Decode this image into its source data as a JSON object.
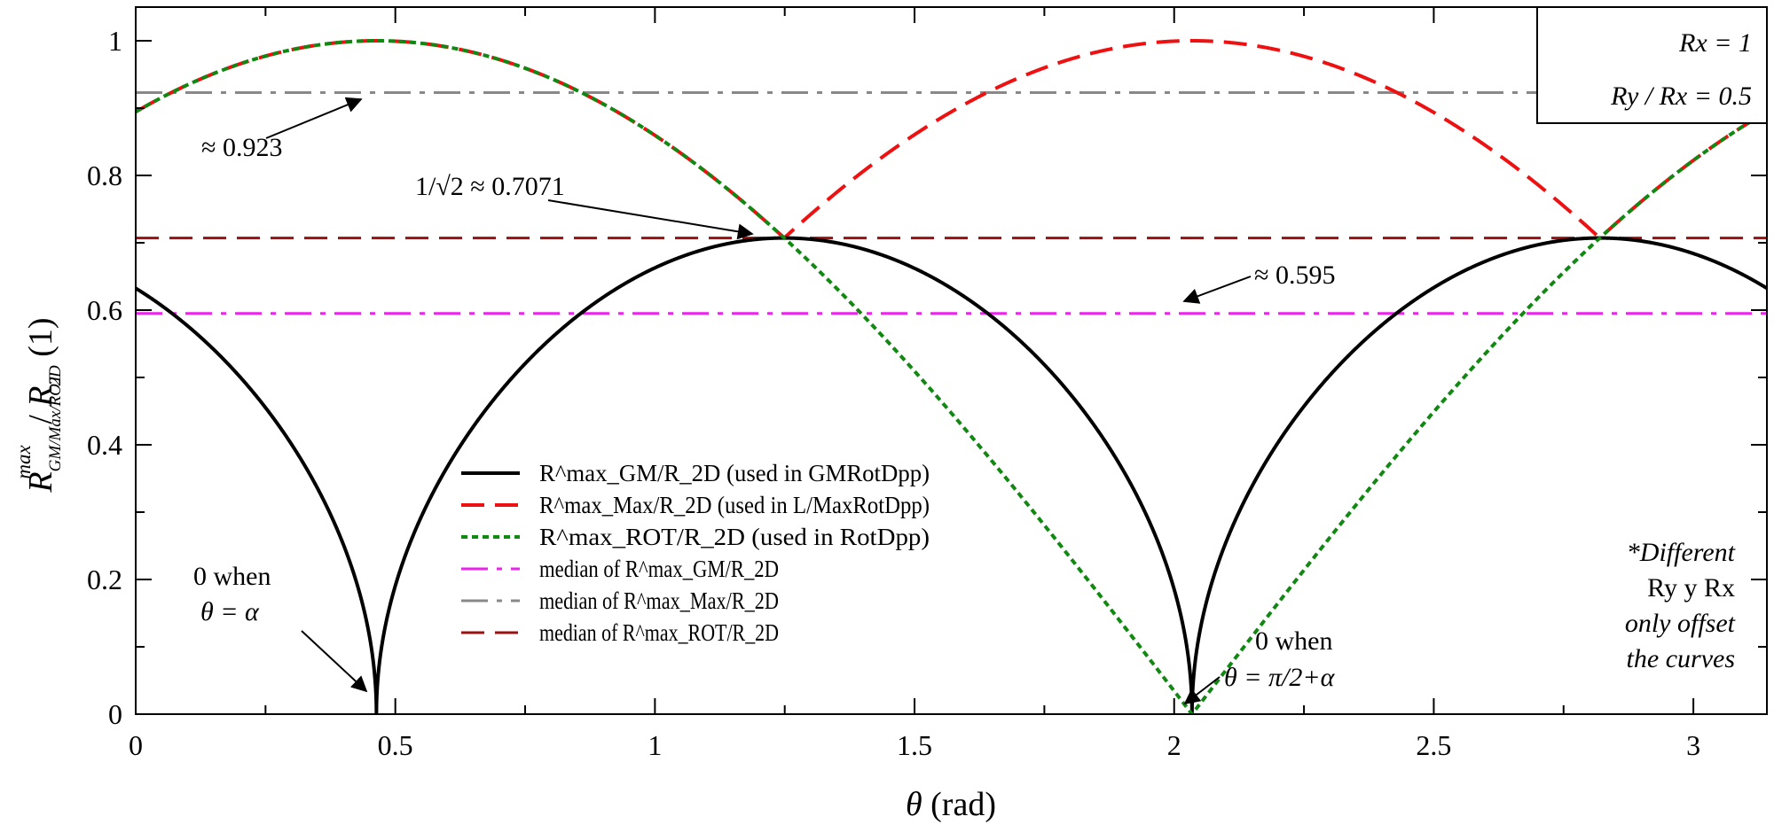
{
  "chart_data": {
    "type": "line",
    "xlabel": "θ (rad)",
    "ylabel": "R^max_GM/Max/ROT / R_2D (1)",
    "xlim": [
      0,
      3.1416
    ],
    "ylim": [
      0,
      1.05
    ],
    "x_ticks": [
      "0",
      "0.5",
      "1",
      "1.5",
      "2",
      "2.5",
      "3"
    ],
    "y_ticks": [
      "0",
      "0.2",
      "0.4",
      "0.6",
      "0.8",
      "1"
    ],
    "grid": false,
    "alpha": 0.4636,
    "series": [
      {
        "name": "R^max_GM/R_2D (used in GMRotDpp)",
        "color": "#000000",
        "style": "solid",
        "formula": "sqrt(|cos(θ-α)·sin(θ-α)|)"
      },
      {
        "name": "R^max_Max/R_2D (used in L/MaxRotDpp)",
        "color": "#ee1111",
        "style": "dashed",
        "formula": "max(|cos(θ-α)|, |sin(θ-α)|)"
      },
      {
        "name": "R^max_ROT/R_2D (used in RotDpp)",
        "color": "#118811",
        "style": "dotted",
        "formula": "|cos(θ-α)|"
      },
      {
        "name": "median of R^max_GM/R_2D",
        "color": "#ee22ee",
        "style": "dash-dot",
        "value": 0.595
      },
      {
        "name": "median of R^max_Max/R_2D",
        "color": "#888888",
        "style": "dash-dot",
        "value": 0.923
      },
      {
        "name": "median of R^max_ROT/R_2D",
        "color": "#991111",
        "style": "dashed",
        "value": 0.7071
      }
    ],
    "annotations": {
      "median_max": "≈ 0.923",
      "crossing": "1/√2 ≈ 0.7071",
      "median_gm": "≈ 0.595",
      "zero1_line1": "0 when",
      "zero1_line2": "θ = α",
      "zero2_line1": "0 when",
      "zero2_line2": "θ = π/2+α",
      "params_line1": "Rx = 1",
      "params_line2": "Ry / Rx = 0.5",
      "note_line1": "*Different",
      "note_line2": "Ry y Rx",
      "note_line3": "only offset",
      "note_line4": "the curves"
    }
  }
}
